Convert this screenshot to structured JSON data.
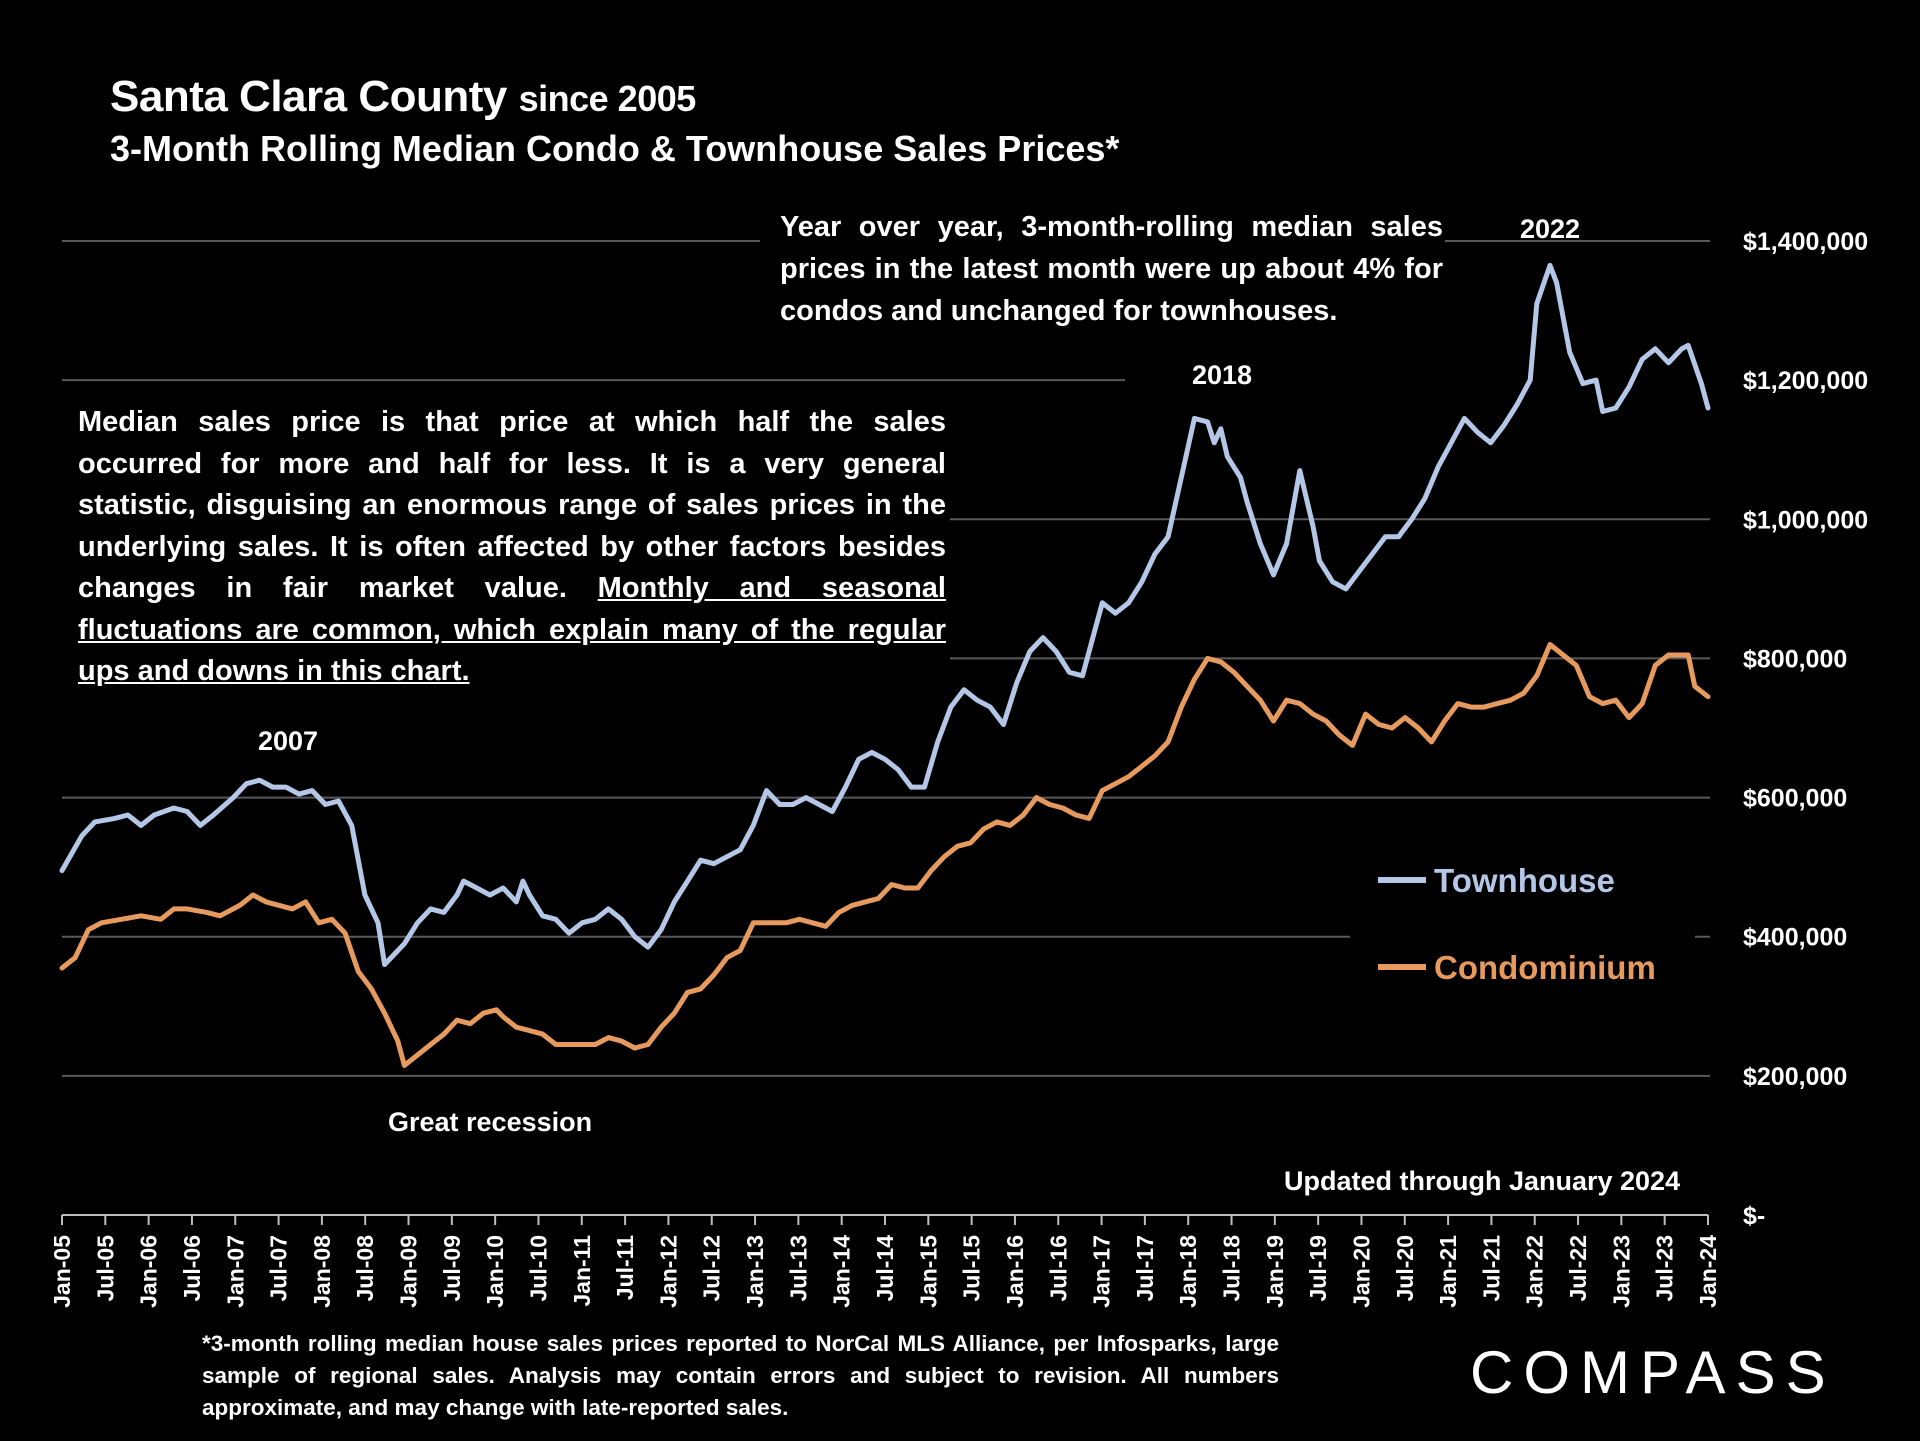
{
  "header": {
    "title_main": "Santa Clara County",
    "title_suffix": "since 2005",
    "subtitle": "3-Month Rolling Median Condo & Townhouse Sales Prices*"
  },
  "annotations": {
    "yoy_note": "Year over year, 3-month-rolling median sales prices in the latest month were up about 4% for condos and unchanged  for townhouses.",
    "median_note_plain": "Median sales price is that price at which half the sales occurred for more and half for less. It is a very general statistic, disguising an enormous range of sales prices in the underlying sales. It is often affected by other factors besides changes in fair market value. ",
    "median_note_underlined": "Monthly and seasonal fluctuations are common, which explain many of the regular ups and downs in this chart.",
    "peak_2007": "2007",
    "peak_2018": "2018",
    "peak_2022": "2022",
    "great_recession": "Great recession",
    "updated": "Updated through January 2024"
  },
  "footnote": "*3-month rolling median house sales prices reported to NorCal MLS Alliance, per Infosparks, large sample of regional sales. Analysis may contain errors and subject to revision. All numbers approximate, and may change with late-reported sales.",
  "brand": {
    "logo_text": "COMPASS"
  },
  "colors": {
    "townhouse": "#b4c7e7",
    "condominium": "#e69a5e",
    "grid": "#595959",
    "background": "#000000"
  },
  "chart_data": {
    "type": "line",
    "title": "Santa Clara County since 2005 — 3-Month Rolling Median Condo & Townhouse Sales Prices*",
    "xlabel": "",
    "ylabel": "",
    "ylim": [
      0,
      1400000
    ],
    "y_ticks": [
      0,
      200000,
      400000,
      600000,
      800000,
      1000000,
      1200000,
      1400000
    ],
    "y_tick_labels": [
      "$-",
      "$200,000",
      "$400,000",
      "$600,000",
      "$800,000",
      "$1,000,000",
      "$1,200,000",
      "$1,400,000"
    ],
    "x_tick_labels": [
      "Jan-05",
      "Jul-05",
      "Jan-06",
      "Jul-06",
      "Jan-07",
      "Jul-07",
      "Jan-08",
      "Jul-08",
      "Jan-09",
      "Jul-09",
      "Jan-10",
      "Jul-10",
      "Jan-11",
      "Jul-11",
      "Jan-12",
      "Jul-12",
      "Jan-13",
      "Jul-13",
      "Jan-14",
      "Jul-14",
      "Jan-15",
      "Jul-15",
      "Jan-16",
      "Jul-16",
      "Jan-17",
      "Jul-17",
      "Jan-18",
      "Jul-18",
      "Jan-19",
      "Jul-19",
      "Jan-20",
      "Jul-20",
      "Jan-21",
      "Jul-21",
      "Jan-22",
      "Jul-22",
      "Jan-23",
      "Jul-23",
      "Jan-24"
    ],
    "x_start": "Jan-05",
    "x_end": "Jan-24",
    "legend": "right",
    "series": [
      {
        "name": "Townhouse",
        "color": "#b4c7e7",
        "points": [
          [
            0,
            495000
          ],
          [
            3,
            545000
          ],
          [
            5,
            565000
          ],
          [
            8,
            570000
          ],
          [
            10,
            575000
          ],
          [
            12,
            560000
          ],
          [
            14,
            575000
          ],
          [
            17,
            585000
          ],
          [
            19,
            580000
          ],
          [
            21,
            560000
          ],
          [
            23,
            575000
          ],
          [
            26,
            600000
          ],
          [
            28,
            620000
          ],
          [
            30,
            625000
          ],
          [
            32,
            615000
          ],
          [
            34,
            615000
          ],
          [
            36,
            605000
          ],
          [
            38,
            610000
          ],
          [
            40,
            590000
          ],
          [
            42,
            595000
          ],
          [
            44,
            560000
          ],
          [
            46,
            460000
          ],
          [
            48,
            420000
          ],
          [
            49,
            360000
          ],
          [
            51,
            380000
          ],
          [
            52,
            390000
          ],
          [
            54,
            420000
          ],
          [
            56,
            440000
          ],
          [
            58,
            435000
          ],
          [
            60,
            460000
          ],
          [
            61,
            480000
          ],
          [
            63,
            470000
          ],
          [
            65,
            460000
          ],
          [
            67,
            470000
          ],
          [
            69,
            450000
          ],
          [
            70,
            480000
          ],
          [
            71,
            460000
          ],
          [
            73,
            430000
          ],
          [
            75,
            425000
          ],
          [
            77,
            405000
          ],
          [
            79,
            420000
          ],
          [
            81,
            425000
          ],
          [
            83,
            440000
          ],
          [
            85,
            425000
          ],
          [
            87,
            400000
          ],
          [
            89,
            385000
          ],
          [
            91,
            410000
          ],
          [
            93,
            450000
          ],
          [
            95,
            480000
          ],
          [
            97,
            510000
          ],
          [
            99,
            505000
          ],
          [
            101,
            515000
          ],
          [
            103,
            525000
          ],
          [
            105,
            560000
          ],
          [
            107,
            610000
          ],
          [
            109,
            590000
          ],
          [
            111,
            590000
          ],
          [
            113,
            600000
          ],
          [
            115,
            590000
          ],
          [
            117,
            580000
          ],
          [
            119,
            615000
          ],
          [
            121,
            655000
          ],
          [
            123,
            665000
          ],
          [
            125,
            655000
          ],
          [
            127,
            640000
          ],
          [
            129,
            615000
          ],
          [
            131,
            615000
          ],
          [
            133,
            680000
          ],
          [
            135,
            730000
          ],
          [
            137,
            755000
          ],
          [
            139,
            740000
          ],
          [
            141,
            730000
          ],
          [
            143,
            705000
          ],
          [
            145,
            765000
          ],
          [
            147,
            810000
          ],
          [
            149,
            830000
          ],
          [
            151,
            810000
          ],
          [
            153,
            780000
          ],
          [
            155,
            775000
          ],
          [
            156,
            810000
          ],
          [
            158,
            880000
          ],
          [
            160,
            865000
          ],
          [
            162,
            880000
          ],
          [
            164,
            910000
          ],
          [
            166,
            950000
          ],
          [
            168,
            975000
          ],
          [
            170,
            1060000
          ],
          [
            172,
            1145000
          ],
          [
            174,
            1140000
          ],
          [
            175,
            1110000
          ],
          [
            176,
            1130000
          ],
          [
            177,
            1090000
          ],
          [
            179,
            1060000
          ],
          [
            180,
            1025000
          ],
          [
            182,
            965000
          ],
          [
            184,
            920000
          ],
          [
            186,
            965000
          ],
          [
            188,
            1070000
          ],
          [
            190,
            990000
          ],
          [
            191,
            940000
          ],
          [
            193,
            910000
          ],
          [
            195,
            900000
          ],
          [
            197,
            925000
          ],
          [
            199,
            950000
          ],
          [
            201,
            975000
          ],
          [
            203,
            975000
          ],
          [
            205,
            1000000
          ],
          [
            207,
            1030000
          ],
          [
            209,
            1075000
          ],
          [
            211,
            1110000
          ],
          [
            213,
            1145000
          ],
          [
            215,
            1125000
          ],
          [
            217,
            1110000
          ],
          [
            219,
            1135000
          ],
          [
            221,
            1165000
          ],
          [
            223,
            1200000
          ],
          [
            224,
            1310000
          ],
          [
            226,
            1365000
          ],
          [
            227,
            1340000
          ],
          [
            229,
            1240000
          ],
          [
            231,
            1195000
          ],
          [
            233,
            1200000
          ],
          [
            234,
            1155000
          ],
          [
            236,
            1160000
          ],
          [
            238,
            1190000
          ],
          [
            240,
            1230000
          ],
          [
            242,
            1245000
          ],
          [
            244,
            1225000
          ],
          [
            246,
            1245000
          ],
          [
            247,
            1250000
          ],
          [
            249,
            1195000
          ],
          [
            250,
            1160000
          ]
        ]
      },
      {
        "name": "Condominium",
        "color": "#e69a5e",
        "points": [
          [
            0,
            355000
          ],
          [
            2,
            370000
          ],
          [
            4,
            410000
          ],
          [
            6,
            420000
          ],
          [
            9,
            425000
          ],
          [
            12,
            430000
          ],
          [
            15,
            425000
          ],
          [
            17,
            440000
          ],
          [
            19,
            440000
          ],
          [
            22,
            435000
          ],
          [
            24,
            430000
          ],
          [
            27,
            445000
          ],
          [
            29,
            460000
          ],
          [
            31,
            450000
          ],
          [
            33,
            445000
          ],
          [
            35,
            440000
          ],
          [
            37,
            450000
          ],
          [
            39,
            420000
          ],
          [
            41,
            425000
          ],
          [
            43,
            405000
          ],
          [
            45,
            350000
          ],
          [
            47,
            325000
          ],
          [
            49,
            290000
          ],
          [
            51,
            250000
          ],
          [
            52,
            215000
          ],
          [
            54,
            230000
          ],
          [
            56,
            245000
          ],
          [
            58,
            260000
          ],
          [
            60,
            280000
          ],
          [
            62,
            275000
          ],
          [
            64,
            290000
          ],
          [
            66,
            295000
          ],
          [
            67,
            285000
          ],
          [
            69,
            270000
          ],
          [
            71,
            265000
          ],
          [
            73,
            260000
          ],
          [
            75,
            245000
          ],
          [
            78,
            245000
          ],
          [
            81,
            245000
          ],
          [
            83,
            255000
          ],
          [
            85,
            250000
          ],
          [
            87,
            240000
          ],
          [
            89,
            245000
          ],
          [
            91,
            270000
          ],
          [
            93,
            290000
          ],
          [
            95,
            320000
          ],
          [
            97,
            325000
          ],
          [
            99,
            345000
          ],
          [
            101,
            370000
          ],
          [
            103,
            380000
          ],
          [
            105,
            420000
          ],
          [
            108,
            420000
          ],
          [
            110,
            420000
          ],
          [
            112,
            425000
          ],
          [
            114,
            420000
          ],
          [
            116,
            415000
          ],
          [
            118,
            435000
          ],
          [
            120,
            445000
          ],
          [
            122,
            450000
          ],
          [
            124,
            455000
          ],
          [
            126,
            475000
          ],
          [
            128,
            470000
          ],
          [
            130,
            470000
          ],
          [
            132,
            495000
          ],
          [
            134,
            515000
          ],
          [
            136,
            530000
          ],
          [
            138,
            535000
          ],
          [
            140,
            555000
          ],
          [
            142,
            565000
          ],
          [
            144,
            560000
          ],
          [
            146,
            575000
          ],
          [
            148,
            600000
          ],
          [
            150,
            590000
          ],
          [
            152,
            585000
          ],
          [
            154,
            575000
          ],
          [
            156,
            570000
          ],
          [
            158,
            610000
          ],
          [
            160,
            620000
          ],
          [
            162,
            630000
          ],
          [
            164,
            645000
          ],
          [
            166,
            660000
          ],
          [
            168,
            680000
          ],
          [
            170,
            730000
          ],
          [
            172,
            770000
          ],
          [
            174,
            800000
          ],
          [
            176,
            795000
          ],
          [
            178,
            780000
          ],
          [
            180,
            760000
          ],
          [
            182,
            740000
          ],
          [
            184,
            710000
          ],
          [
            186,
            740000
          ],
          [
            188,
            735000
          ],
          [
            190,
            720000
          ],
          [
            192,
            710000
          ],
          [
            194,
            690000
          ],
          [
            196,
            675000
          ],
          [
            198,
            720000
          ],
          [
            200,
            705000
          ],
          [
            202,
            700000
          ],
          [
            204,
            715000
          ],
          [
            206,
            700000
          ],
          [
            208,
            680000
          ],
          [
            210,
            710000
          ],
          [
            212,
            735000
          ],
          [
            214,
            730000
          ],
          [
            216,
            730000
          ],
          [
            218,
            735000
          ],
          [
            220,
            740000
          ],
          [
            222,
            750000
          ],
          [
            224,
            775000
          ],
          [
            226,
            820000
          ],
          [
            228,
            805000
          ],
          [
            230,
            790000
          ],
          [
            232,
            745000
          ],
          [
            234,
            735000
          ],
          [
            236,
            740000
          ],
          [
            238,
            715000
          ],
          [
            240,
            735000
          ],
          [
            242,
            790000
          ],
          [
            244,
            805000
          ],
          [
            246,
            805000
          ],
          [
            247,
            805000
          ],
          [
            248,
            760000
          ],
          [
            250,
            745000
          ]
        ]
      }
    ]
  }
}
